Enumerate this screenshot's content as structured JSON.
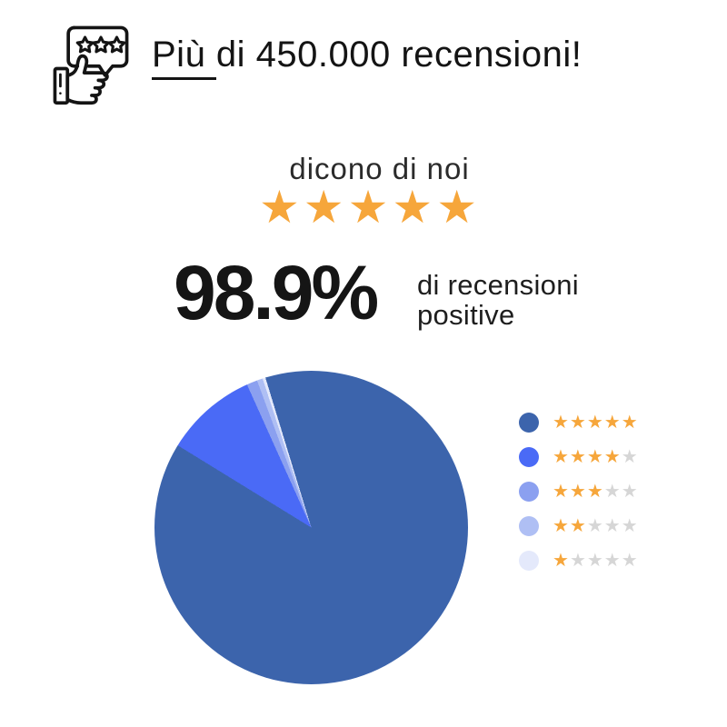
{
  "header": {
    "title": "Più di 450.000 recensioni!",
    "icon": "review-thumbs-up-icon"
  },
  "tagline": {
    "text": "dicono di noi",
    "stars": "★★★★★"
  },
  "stat": {
    "value": "98.9%",
    "label_line1": "di recensioni",
    "label_line2": "positive"
  },
  "colors": {
    "star_filled": "#F6A63B",
    "star_empty": "#D6D6D6",
    "ink": "#141414"
  },
  "chart_data": {
    "type": "pie",
    "description": "Distribuzione recensioni per numero di stelle (valori stimati dalla geometria del grafico)",
    "slices": [
      {
        "stars": 5,
        "value": 88.5,
        "color": "#3C64AC"
      },
      {
        "stars": 4,
        "value": 9.5,
        "color": "#4A6AF6"
      },
      {
        "stars": 3,
        "value": 1.1,
        "color": "#8BA0F0"
      },
      {
        "stars": 2,
        "value": 0.6,
        "color": "#AFBFF4"
      },
      {
        "stars": 1,
        "value": 0.3,
        "color": "#E4E9FB"
      }
    ],
    "rotation_deg": -17,
    "legend_position": "right",
    "legend_max_stars": 5
  }
}
